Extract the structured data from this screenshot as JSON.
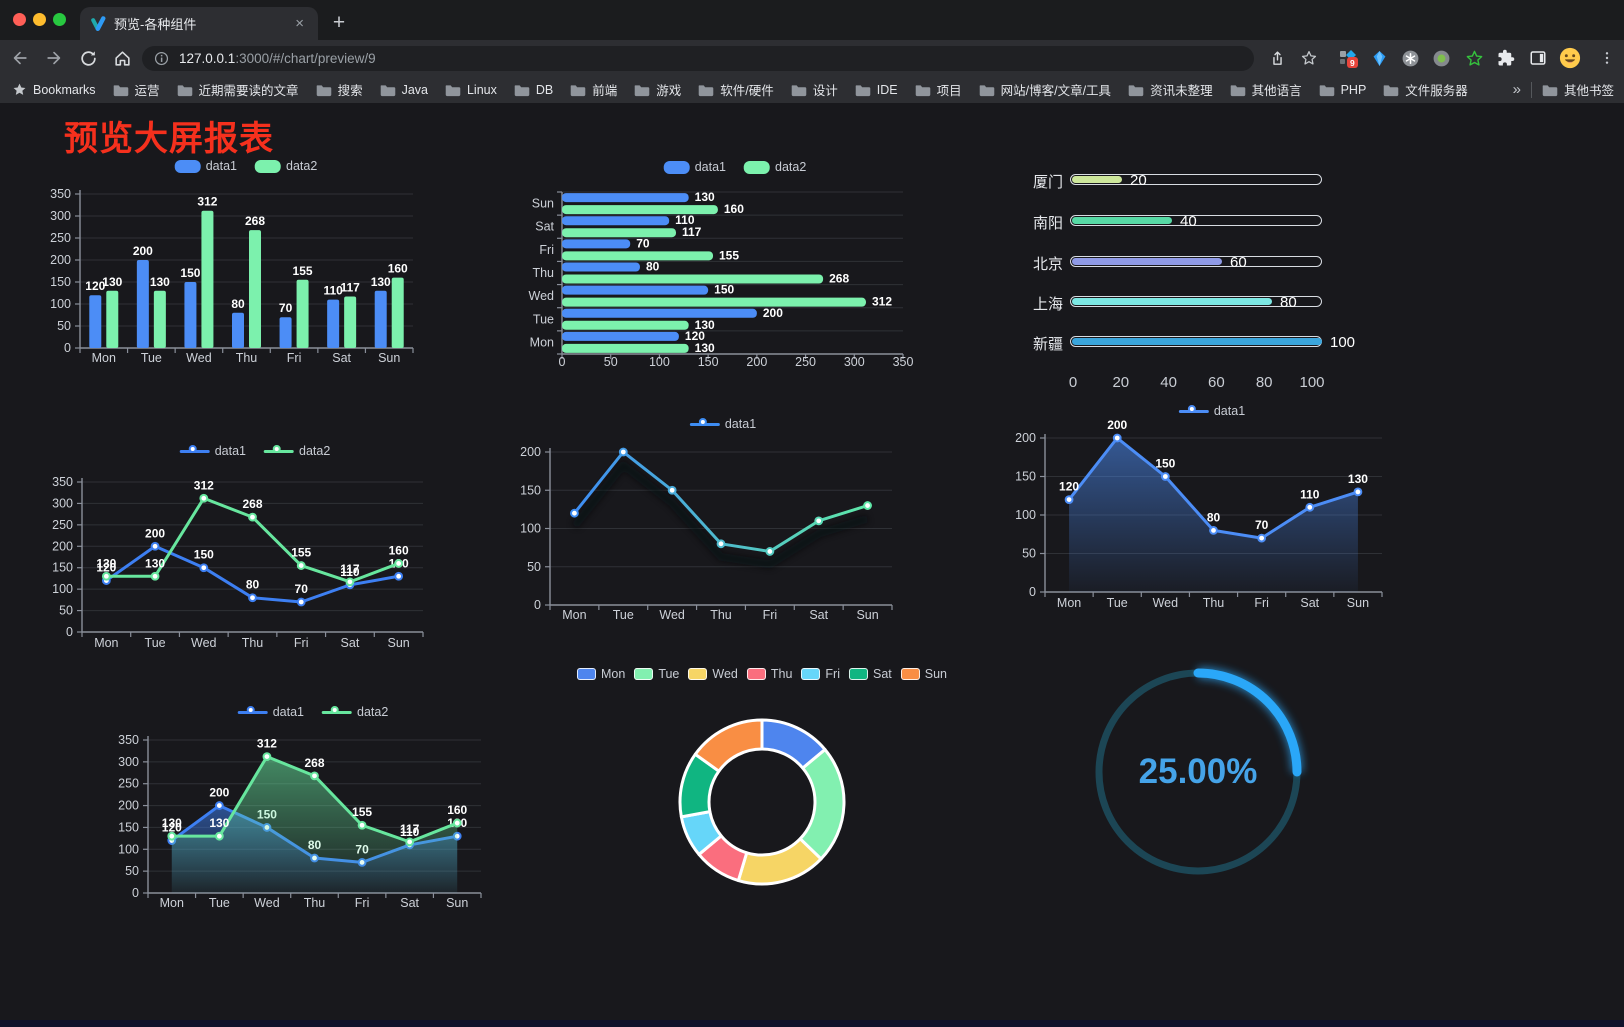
{
  "browser": {
    "tab_title": "预览-各种组件",
    "tab_close": "×",
    "new_tab": "+",
    "url_host": "127.0.0.1",
    "url_rest": ":3000/#/chart/preview/9",
    "extension_badge": "9",
    "traffic_lights": [
      "#ff5f57",
      "#febc2e",
      "#28c840"
    ],
    "bookmarks": {
      "label": "Bookmarks",
      "folders": [
        "运营",
        "近期需要读的文章",
        "搜索",
        "Java",
        "Linux",
        "DB",
        "前端",
        "游戏",
        "软件/硬件",
        "设计",
        "IDE",
        "项目",
        "网站/博客/文章/工具",
        "资讯未整理",
        "其他语言",
        "PHP",
        "文件服务器"
      ],
      "overflow": "»",
      "other": "其他书签"
    }
  },
  "page": {
    "title": "预览大屏报表",
    "title_color": "#f5301d",
    "background": "#18181c"
  },
  "chart_data": [
    {
      "id": "bar-vertical",
      "type": "bar",
      "categories": [
        "Mon",
        "Tue",
        "Wed",
        "Thu",
        "Fri",
        "Sat",
        "Sun"
      ],
      "series": [
        {
          "name": "data1",
          "color": "#4c8df6",
          "values": [
            120,
            200,
            150,
            80,
            70,
            110,
            130
          ]
        },
        {
          "name": "data2",
          "color": "#7cf1ad",
          "values": [
            130,
            130,
            312,
            268,
            155,
            117,
            160
          ]
        }
      ],
      "ylim": [
        0,
        350
      ],
      "ytick_step": 50,
      "show_labels": true,
      "legend_position": "top",
      "grid": true
    },
    {
      "id": "bar-horizontal",
      "type": "bar-horizontal",
      "categories": [
        "Mon",
        "Tue",
        "Wed",
        "Thu",
        "Fri",
        "Sat",
        "Sun"
      ],
      "series": [
        {
          "name": "data1",
          "color": "#4c8df6",
          "values": [
            120,
            200,
            150,
            80,
            70,
            110,
            130
          ]
        },
        {
          "name": "data2",
          "color": "#7cf1ad",
          "values": [
            130,
            130,
            312,
            268,
            155,
            117,
            160
          ]
        }
      ],
      "xlim": [
        0,
        350
      ],
      "xtick_step": 50,
      "show_labels": true,
      "legend_position": "top",
      "grid": true
    },
    {
      "id": "capsule-bars",
      "type": "capsule",
      "categories": [
        "厦门",
        "南阳",
        "北京",
        "上海",
        "新疆"
      ],
      "values": [
        20,
        40,
        60,
        80,
        100
      ],
      "bar_colors": [
        "#cde79b",
        "#57d9a5",
        "#8f9ae6",
        "#7ce7e3",
        "#3aa5dc"
      ],
      "xlim": [
        0,
        100
      ],
      "xticks": [
        0,
        20,
        40,
        60,
        80,
        100
      ]
    },
    {
      "id": "line-two",
      "type": "line",
      "categories": [
        "Mon",
        "Tue",
        "Wed",
        "Thu",
        "Fri",
        "Sat",
        "Sun"
      ],
      "series": [
        {
          "name": "data1",
          "color": "#3d7ff2",
          "values": [
            120,
            200,
            150,
            80,
            70,
            110,
            130
          ]
        },
        {
          "name": "data2",
          "color": "#67e69e",
          "values": [
            130,
            130,
            312,
            268,
            155,
            117,
            160
          ]
        }
      ],
      "ylim": [
        0,
        350
      ],
      "ytick_step": 50,
      "show_labels": true,
      "show_markers": true,
      "legend_position": "top",
      "grid": true
    },
    {
      "id": "line-gradient",
      "type": "line",
      "categories": [
        "Mon",
        "Tue",
        "Wed",
        "Thu",
        "Fri",
        "Sat",
        "Sun"
      ],
      "series": [
        {
          "name": "data1",
          "color": "#3e8df3",
          "color_end": "#5fe8a8",
          "values": [
            120,
            200,
            150,
            80,
            70,
            110,
            130
          ],
          "shadow": true
        }
      ],
      "ylim": [
        0,
        200
      ],
      "ytick_step": 50,
      "show_labels": false,
      "show_markers": true,
      "legend_position": "top",
      "grid": true
    },
    {
      "id": "area-single",
      "type": "line",
      "categories": [
        "Mon",
        "Tue",
        "Wed",
        "Thu",
        "Fri",
        "Sat",
        "Sun"
      ],
      "series": [
        {
          "name": "data1",
          "color": "#4c8df6",
          "values": [
            120,
            200,
            150,
            80,
            70,
            110,
            130
          ],
          "area": true
        }
      ],
      "ylim": [
        0,
        200
      ],
      "ytick_step": 50,
      "show_labels": true,
      "show_markers": true,
      "legend_position": "top",
      "grid": true
    },
    {
      "id": "area-two",
      "type": "line",
      "categories": [
        "Mon",
        "Tue",
        "Wed",
        "Thu",
        "Fri",
        "Sat",
        "Sun"
      ],
      "series": [
        {
          "name": "data1",
          "color": "#3d7ff2",
          "values": [
            120,
            200,
            150,
            80,
            70,
            110,
            130
          ],
          "area": true
        },
        {
          "name": "data2",
          "color": "#67e69e",
          "values": [
            130,
            130,
            312,
            268,
            155,
            117,
            160
          ],
          "area": true
        }
      ],
      "ylim": [
        0,
        350
      ],
      "ytick_step": 50,
      "show_labels": true,
      "show_markers": true,
      "legend_position": "top",
      "grid": true
    },
    {
      "id": "donut",
      "type": "pie",
      "categories": [
        "Mon",
        "Tue",
        "Wed",
        "Thu",
        "Fri",
        "Sat",
        "Sun"
      ],
      "values": [
        120,
        200,
        150,
        80,
        70,
        110,
        130
      ],
      "colors": [
        "#4e85ee",
        "#82f0b0",
        "#f6d565",
        "#fa6e7e",
        "#66d6f9",
        "#10b581",
        "#f98e44"
      ],
      "inner_radius_ratio": 0.64,
      "legend_position": "top"
    },
    {
      "id": "gauge",
      "type": "gauge",
      "value": 25,
      "max": 100,
      "label": "25.00%",
      "progress_color": "#2aa7f8",
      "track_color": "#1c4655",
      "text_color": "#45a3e8"
    }
  ]
}
